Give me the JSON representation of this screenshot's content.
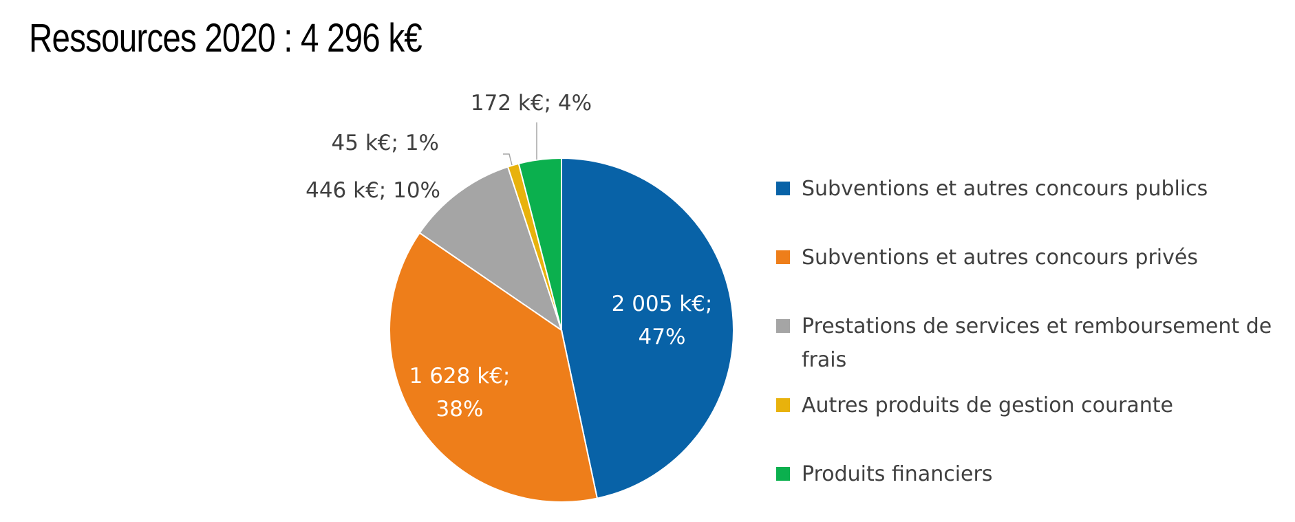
{
  "chart_data": {
    "type": "pie",
    "title": "Ressources 2020 : 4 296 k€",
    "total": "4 296 k€",
    "legend_position": "right",
    "slices": [
      {
        "name": "Subventions et autres concours publics",
        "value": 2005,
        "percent": 47,
        "label_line1": "2 005 k€;",
        "label_line2": "47%",
        "color": "#0862A7",
        "label_color": "#ffffff"
      },
      {
        "name": "Subventions et autres concours privés",
        "value": 1628,
        "percent": 38,
        "label_line1": "1 628 k€;",
        "label_line2": "38%",
        "color": "#EE7E1A",
        "label_color": "#ffffff"
      },
      {
        "name": "Prestations de services et remboursement de frais",
        "value": 446,
        "percent": 10,
        "label_line1": "446 k€; 10%",
        "label_line2": "",
        "color": "#A5A5A5",
        "label_color": "#404040"
      },
      {
        "name": "Autres produits de gestion courante",
        "value": 45,
        "percent": 1,
        "label_line1": "45 k€; 1%",
        "label_line2": "",
        "color": "#E8B20C",
        "label_color": "#404040"
      },
      {
        "name": "Produits financiers",
        "value": 172,
        "percent": 4,
        "label_line1": "172 k€; 4%",
        "label_line2": "",
        "color": "#0BB04E",
        "label_color": "#404040"
      }
    ]
  }
}
